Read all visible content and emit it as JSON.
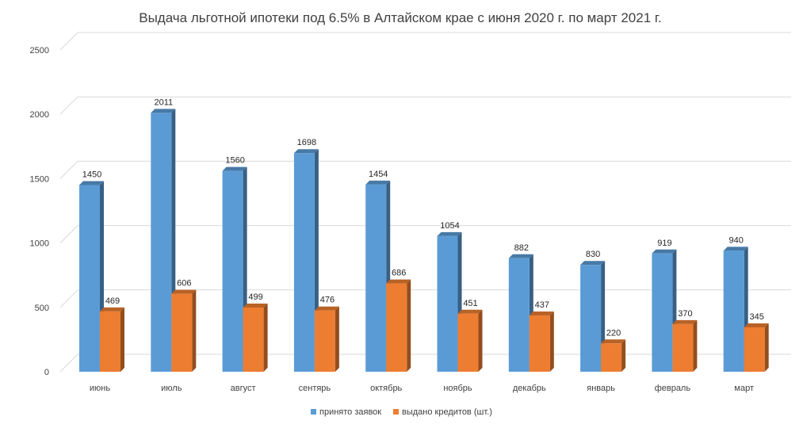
{
  "chart_data": {
    "type": "bar",
    "title": "Выдача льготной ипотеки под 6.5% в Алтайском крае с июня 2020 г. по март 2021 г.",
    "categories": [
      "июнь",
      "июль",
      "август",
      "сентярь",
      "октябрь",
      "ноябрь",
      "декабрь",
      "январь",
      "февраль",
      "март"
    ],
    "series": [
      {
        "name": "принято заявок",
        "values": [
          1450,
          2011,
          1560,
          1698,
          1454,
          1054,
          882,
          830,
          919,
          940
        ],
        "color": "#5b9bd5"
      },
      {
        "name": "выдано кредитов (шт.)",
        "values": [
          469,
          606,
          499,
          476,
          686,
          451,
          437,
          220,
          370,
          345
        ],
        "color": "#ed7d31"
      }
    ],
    "yticks": [
      "0",
      "500",
      "1000",
      "1500",
      "2000",
      "2500"
    ],
    "ylim": [
      0,
      2500
    ],
    "grid": true,
    "legend_position": "bottom"
  }
}
